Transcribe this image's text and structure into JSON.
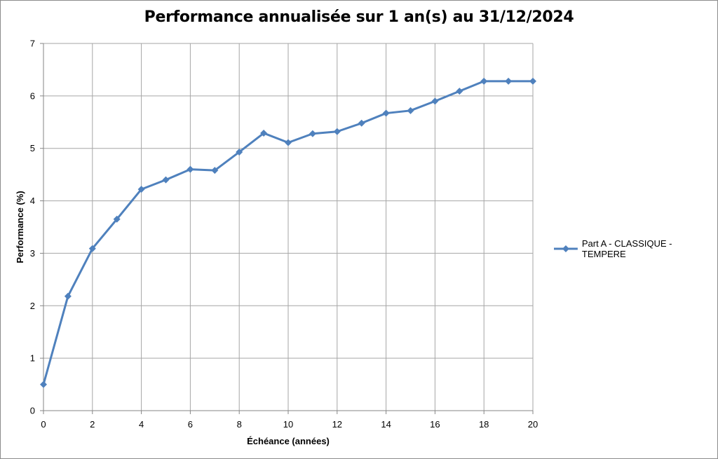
{
  "chart_data": {
    "type": "line",
    "title": "Performance annualisée sur 1 an(s) au 31/12/2024",
    "xlabel": "Échéance (années)",
    "ylabel": "Performance (%)",
    "xlim": [
      0,
      20
    ],
    "ylim": [
      0,
      7
    ],
    "x_ticks": [
      0,
      2,
      4,
      6,
      8,
      10,
      12,
      14,
      16,
      18,
      20
    ],
    "y_ticks": [
      0,
      1,
      2,
      3,
      4,
      5,
      6,
      7
    ],
    "grid": true,
    "legend_position": "right",
    "series": [
      {
        "name": "Part A - CLASSIQUE - TEMPERE",
        "color": "#4f81bd",
        "marker": "diamond",
        "x": [
          0,
          1,
          2,
          3,
          4,
          5,
          6,
          7,
          8,
          9,
          10,
          11,
          12,
          13,
          14,
          15,
          16,
          17,
          18,
          19,
          20
        ],
        "y": [
          0.5,
          2.18,
          3.09,
          3.65,
          4.22,
          4.4,
          4.6,
          4.58,
          4.93,
          5.29,
          5.11,
          5.28,
          5.32,
          5.48,
          5.67,
          5.72,
          5.9,
          6.09,
          6.28,
          6.28,
          6.28
        ]
      }
    ]
  }
}
